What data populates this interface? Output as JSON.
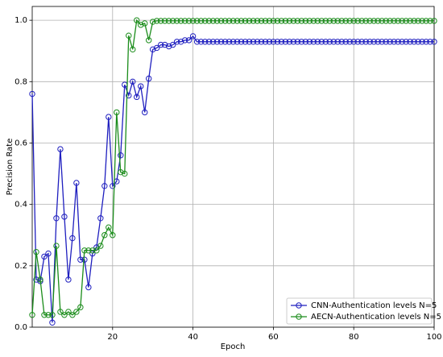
{
  "chart_data": {
    "type": "line",
    "xlabel": "Epoch",
    "ylabel": "Precision Rate",
    "x": [
      0,
      1,
      2,
      3,
      4,
      5,
      6,
      7,
      8,
      9,
      10,
      11,
      12,
      13,
      14,
      15,
      16,
      17,
      18,
      19,
      20,
      21,
      22,
      23,
      24,
      25,
      26,
      27,
      28,
      29,
      30,
      31,
      32,
      33,
      34,
      35,
      36,
      37,
      38,
      39,
      40,
      41,
      42,
      43,
      44,
      45,
      46,
      47,
      48,
      49,
      50,
      51,
      52,
      53,
      54,
      55,
      56,
      57,
      58,
      59,
      60,
      61,
      62,
      63,
      64,
      65,
      66,
      67,
      68,
      69,
      70,
      71,
      72,
      73,
      74,
      75,
      76,
      77,
      78,
      79,
      80,
      81,
      82,
      83,
      84,
      85,
      86,
      87,
      88,
      89,
      90,
      91,
      92,
      93,
      94,
      95,
      96,
      97,
      98,
      99,
      100
    ],
    "series": [
      {
        "name": "CNN-Authentication levels N=5",
        "color": "#1f1fbf",
        "values": [
          0.76,
          0.155,
          0.15,
          0.23,
          0.24,
          0.015,
          0.355,
          0.58,
          0.36,
          0.155,
          0.29,
          0.47,
          0.22,
          0.22,
          0.13,
          0.24,
          0.26,
          0.355,
          0.46,
          0.685,
          0.46,
          0.475,
          0.56,
          0.79,
          0.755,
          0.8,
          0.75,
          0.785,
          0.7,
          0.81,
          0.905,
          0.91,
          0.92,
          0.92,
          0.915,
          0.92,
          0.93,
          0.93,
          0.935,
          0.935,
          0.948,
          0.93,
          0.93,
          0.93,
          0.93,
          0.93,
          0.93,
          0.93,
          0.93,
          0.93,
          0.93,
          0.93,
          0.93,
          0.93,
          0.93,
          0.93,
          0.93,
          0.93,
          0.93,
          0.93,
          0.93,
          0.93,
          0.93,
          0.93,
          0.93,
          0.93,
          0.93,
          0.93,
          0.93,
          0.93,
          0.93,
          0.93,
          0.93,
          0.93,
          0.93,
          0.93,
          0.93,
          0.93,
          0.93,
          0.93,
          0.93,
          0.93,
          0.93,
          0.93,
          0.93,
          0.93,
          0.93,
          0.93,
          0.93,
          0.93,
          0.93,
          0.93,
          0.93,
          0.93,
          0.93,
          0.93,
          0.93,
          0.93,
          0.93,
          0.93,
          0.93
        ]
      },
      {
        "name": "AECN-Authentication levels N=5",
        "color": "#1a8c1a",
        "values": [
          0.04,
          0.245,
          0.155,
          0.04,
          0.04,
          0.04,
          0.265,
          0.05,
          0.04,
          0.05,
          0.04,
          0.05,
          0.065,
          0.25,
          0.25,
          0.25,
          0.25,
          0.265,
          0.3,
          0.325,
          0.3,
          0.7,
          0.505,
          0.5,
          0.95,
          0.905,
          1.0,
          0.985,
          0.99,
          0.935,
          0.995,
          0.998,
          0.998,
          0.998,
          0.998,
          0.998,
          0.998,
          0.998,
          0.998,
          0.998,
          0.998,
          0.998,
          0.998,
          0.998,
          0.998,
          0.998,
          0.998,
          0.998,
          0.998,
          0.998,
          0.998,
          0.998,
          0.998,
          0.998,
          0.998,
          0.998,
          0.998,
          0.998,
          0.998,
          0.998,
          0.998,
          0.998,
          0.998,
          0.998,
          0.998,
          0.998,
          0.998,
          0.998,
          0.998,
          0.998,
          0.998,
          0.998,
          0.998,
          0.998,
          0.998,
          0.998,
          0.998,
          0.998,
          0.998,
          0.998,
          0.998,
          0.998,
          0.998,
          0.998,
          0.998,
          0.998,
          0.998,
          0.998,
          0.998,
          0.998,
          0.998,
          0.998,
          0.998,
          0.998,
          0.998,
          0.998,
          0.998,
          0.998,
          0.998,
          0.998,
          0.998
        ]
      }
    ],
    "xlim": [
      0,
      100
    ],
    "ylim": [
      0,
      1.045
    ],
    "xticks": [
      20,
      40,
      60,
      80,
      100
    ],
    "yticks": [
      {
        "value": 0,
        "label": "0.0"
      },
      {
        "value": 0.2,
        "label": "0.2"
      },
      {
        "value": 0.4,
        "label": "0.4"
      },
      {
        "value": 0.6,
        "label": "0.6"
      },
      {
        "value": 0.8,
        "label": "0.8"
      },
      {
        "value": 1.0,
        "label": "1.0"
      }
    ],
    "grid": true,
    "legend": "lower right"
  }
}
